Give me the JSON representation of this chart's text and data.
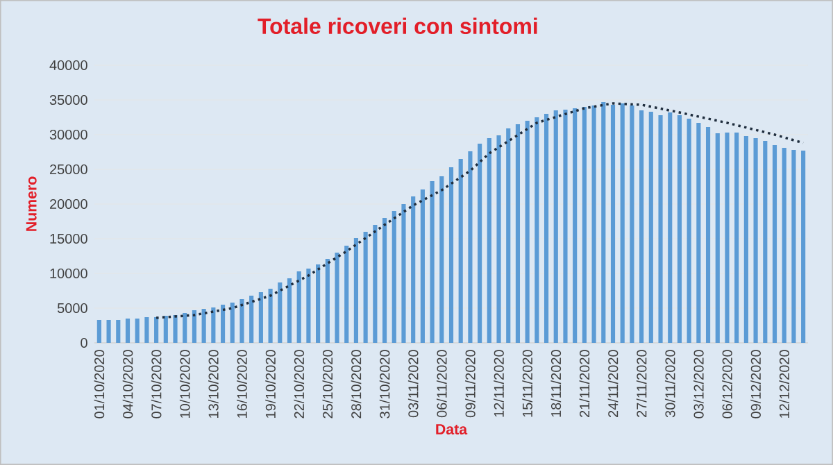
{
  "chart_data": {
    "type": "bar",
    "title": "Totale ricoveri con sintomi",
    "xlabel": "Data",
    "ylabel": "Numero",
    "x": [
      "2020-10-01",
      "2020-10-02",
      "2020-10-03",
      "2020-10-04",
      "2020-10-05",
      "2020-10-06",
      "2020-10-07",
      "2020-10-08",
      "2020-10-09",
      "2020-10-10",
      "2020-10-11",
      "2020-10-12",
      "2020-10-13",
      "2020-10-14",
      "2020-10-15",
      "2020-10-16",
      "2020-10-17",
      "2020-10-18",
      "2020-10-19",
      "2020-10-20",
      "2020-10-21",
      "2020-10-22",
      "2020-10-23",
      "2020-10-24",
      "2020-10-25",
      "2020-10-26",
      "2020-10-27",
      "2020-10-28",
      "2020-10-29",
      "2020-10-30",
      "2020-10-31",
      "2020-11-01",
      "2020-11-02",
      "2020-11-03",
      "2020-11-04",
      "2020-11-05",
      "2020-11-06",
      "2020-11-07",
      "2020-11-08",
      "2020-11-09",
      "2020-11-10",
      "2020-11-11",
      "2020-11-12",
      "2020-11-13",
      "2020-11-14",
      "2020-11-15",
      "2020-11-16",
      "2020-11-17",
      "2020-11-18",
      "2020-11-19",
      "2020-11-20",
      "2020-11-21",
      "2020-11-22",
      "2020-11-23",
      "2020-11-24",
      "2020-11-25",
      "2020-11-26",
      "2020-11-27",
      "2020-11-28",
      "2020-11-29",
      "2020-11-30",
      "2020-12-01",
      "2020-12-02",
      "2020-12-03",
      "2020-12-04",
      "2020-12-05",
      "2020-12-06",
      "2020-12-07",
      "2020-12-08",
      "2020-12-09",
      "2020-12-10",
      "2020-12-11",
      "2020-12-12",
      "2020-12-13",
      "2020-12-14"
    ],
    "series": [
      {
        "color": "#5b9bd5",
        "values": [
          3300,
          3300,
          3300,
          3500,
          3500,
          3700,
          3700,
          3900,
          4000,
          4300,
          4700,
          4900,
          5100,
          5500,
          5800,
          6300,
          6800,
          7300,
          7800,
          8700,
          9300,
          10300,
          10700,
          11300,
          12100,
          13000,
          14000,
          15100,
          16000,
          17000,
          18000,
          19000,
          20000,
          21100,
          22100,
          23300,
          24000,
          25300,
          26500,
          27600,
          28700,
          29500,
          29900,
          30900,
          31500,
          32000,
          32500,
          33000,
          33500,
          33600,
          33800,
          34000,
          34200,
          34700,
          34300,
          34500,
          34200,
          33500,
          33300,
          32800,
          33200,
          32800,
          32300,
          31700,
          31100,
          30200,
          30300,
          30300,
          29800,
          29500,
          29100,
          28500,
          28100,
          27800,
          27700
        ]
      },
      {
        "type": "line",
        "color": "#1f2d3d",
        "line_style": "dotted",
        "marker": "none",
        "x": [
          "2020-10-07",
          "2020-10-11",
          "2020-10-15",
          "2020-10-19",
          "2020-10-23",
          "2020-10-27",
          "2020-10-31",
          "2020-11-03",
          "2020-11-06",
          "2020-11-09",
          "2020-11-11",
          "2020-11-16",
          "2020-11-21",
          "2020-11-24",
          "2020-11-27",
          "2020-12-01",
          "2020-12-06",
          "2020-12-11",
          "2020-12-14"
        ],
        "values": [
          3600,
          4000,
          5000,
          6800,
          9700,
          13200,
          17000,
          19800,
          22000,
          24800,
          27300,
          31700,
          33800,
          34500,
          34300,
          33200,
          31700,
          30000,
          28800
        ]
      }
    ],
    "xlim": [
      "2020-09-30T12:00",
      "2020-12-14T12:00"
    ],
    "xticks": [
      {
        "value": "2020-10-01",
        "label": "01/10/2020"
      },
      {
        "value": "2020-10-04",
        "label": "04/10/2020"
      },
      {
        "value": "2020-10-07",
        "label": "07/10/2020"
      },
      {
        "value": "2020-10-10",
        "label": "10/10/2020"
      },
      {
        "value": "2020-10-13",
        "label": "13/10/2020"
      },
      {
        "value": "2020-10-16",
        "label": "16/10/2020"
      },
      {
        "value": "2020-10-19",
        "label": "19/10/2020"
      },
      {
        "value": "2020-10-22",
        "label": "22/10/2020"
      },
      {
        "value": "2020-10-25",
        "label": "25/10/2020"
      },
      {
        "value": "2020-10-28",
        "label": "28/10/2020"
      },
      {
        "value": "2020-10-31",
        "label": "31/10/2020"
      },
      {
        "value": "2020-11-03",
        "label": "03/11/2020"
      },
      {
        "value": "2020-11-06",
        "label": "06/11/2020"
      },
      {
        "value": "2020-11-09",
        "label": "09/11/2020"
      },
      {
        "value": "2020-11-12",
        "label": "12/11/2020"
      },
      {
        "value": "2020-11-15",
        "label": "15/11/2020"
      },
      {
        "value": "2020-11-18",
        "label": "18/11/2020"
      },
      {
        "value": "2020-11-21",
        "label": "21/11/2020"
      },
      {
        "value": "2020-11-24",
        "label": "24/11/2020"
      },
      {
        "value": "2020-11-27",
        "label": "27/11/2020"
      },
      {
        "value": "2020-11-30",
        "label": "30/11/2020"
      },
      {
        "value": "2020-12-03",
        "label": "03/12/2020"
      },
      {
        "value": "2020-12-06",
        "label": "06/12/2020"
      },
      {
        "value": "2020-12-09",
        "label": "09/12/2020"
      },
      {
        "value": "2020-12-12",
        "label": "12/12/2020"
      }
    ],
    "ylim": [
      0,
      40000
    ],
    "yticks": [
      0,
      5000,
      10000,
      15000,
      20000,
      25000,
      30000,
      35000,
      40000
    ],
    "grid": "y"
  }
}
